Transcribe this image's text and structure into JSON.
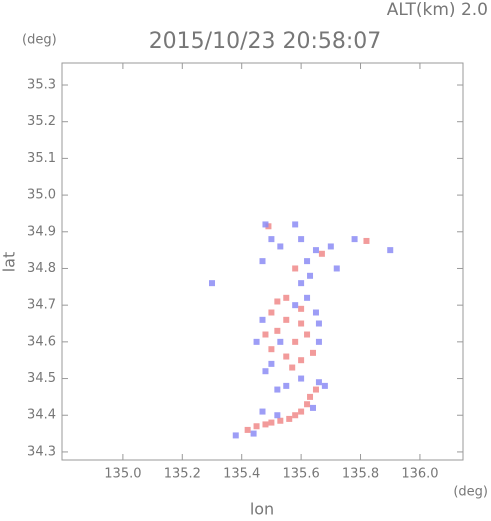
{
  "chart_data": {
    "type": "scatter",
    "title": "2015/10/23 20:58:07",
    "annotation": "ALT(km) 2.0",
    "y_unit": "(deg)",
    "x_unit": "(deg)",
    "x_label": "lon",
    "y_label": "lat",
    "xlim": [
      134.795,
      136.145
    ],
    "ylim": [
      34.278,
      35.36
    ],
    "xticks": [
      {
        "value": 135,
        "label": "135.0"
      },
      {
        "value": 135.2,
        "label": "135.2"
      },
      {
        "value": 135.4,
        "label": "135.4"
      },
      {
        "value": 135.6,
        "label": "135.6"
      },
      {
        "value": 135.8,
        "label": "135.8"
      },
      {
        "value": 136,
        "label": "136.0"
      }
    ],
    "yticks": [
      34.3,
      34.4,
      34.5,
      34.6,
      34.7,
      34.8,
      34.9,
      {
        "value": 35,
        "label": "35.0"
      },
      35.1,
      35.2,
      35.3
    ],
    "series": [
      {
        "color": "#f08a8a",
        "x": [
          135.42,
          135.45,
          135.48,
          135.5,
          135.53,
          135.56,
          135.58,
          135.6,
          135.62,
          135.63,
          135.65,
          135.52,
          135.55,
          135.5,
          135.55,
          135.6,
          135.52,
          135.58,
          135.62,
          135.5,
          135.55,
          135.6,
          135.57,
          135.64,
          135.48,
          135.6,
          135.49,
          135.82,
          135.67,
          135.58
        ],
        "y": [
          34.36,
          34.37,
          34.375,
          34.38,
          34.385,
          34.39,
          34.4,
          34.41,
          34.43,
          34.45,
          34.47,
          34.71,
          34.72,
          34.68,
          34.66,
          34.65,
          34.63,
          34.6,
          34.62,
          34.58,
          34.56,
          34.55,
          34.53,
          34.57,
          34.62,
          34.69,
          34.915,
          34.875,
          34.84,
          34.8
        ]
      },
      {
        "color": "#8c8cf5",
        "x": [
          135.38,
          135.44,
          135.52,
          135.66,
          135.68,
          135.64,
          135.47,
          135.47,
          135.45,
          135.5,
          135.6,
          135.66,
          135.65,
          135.58,
          135.62,
          135.48,
          135.53,
          135.66,
          135.55,
          135.52,
          135.48,
          135.5,
          135.53,
          135.47,
          135.58,
          135.6,
          135.62,
          135.65,
          135.7,
          135.72,
          135.63,
          135.3,
          135.9,
          135.78,
          135.6
        ],
        "y": [
          34.345,
          34.35,
          34.4,
          34.49,
          34.48,
          34.42,
          34.41,
          34.66,
          34.6,
          34.54,
          34.5,
          34.6,
          34.68,
          34.7,
          34.72,
          34.52,
          34.6,
          34.65,
          34.48,
          34.47,
          34.92,
          34.88,
          34.86,
          34.82,
          34.92,
          34.88,
          34.82,
          34.85,
          34.86,
          34.8,
          34.78,
          34.76,
          34.85,
          34.88,
          34.76
        ]
      }
    ]
  }
}
